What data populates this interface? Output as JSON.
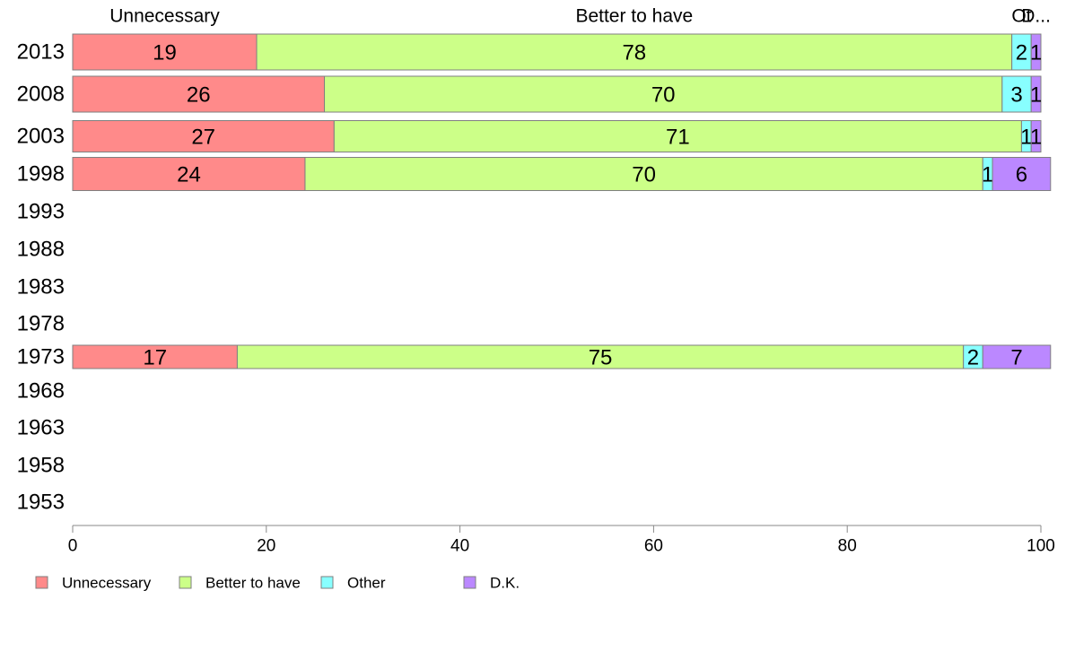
{
  "chart_data": {
    "type": "bar",
    "orientation": "horizontal",
    "stacked": true,
    "categories": [
      "2013",
      "2008",
      "2003",
      "1998",
      "1993",
      "1988",
      "1983",
      "1978",
      "1973",
      "1968",
      "1963",
      "1958",
      "1953"
    ],
    "series": [
      {
        "name": "Unnecessary",
        "color": "#ff8a8a",
        "values": [
          19,
          26,
          27,
          24,
          null,
          null,
          null,
          null,
          17,
          null,
          null,
          null,
          null
        ]
      },
      {
        "name": "Better to have",
        "color": "#ccff88",
        "values": [
          78,
          70,
          71,
          70,
          null,
          null,
          null,
          null,
          75,
          null,
          null,
          null,
          null
        ]
      },
      {
        "name": "Other",
        "color": "#88ffff",
        "values": [
          2,
          3,
          1,
          1,
          null,
          null,
          null,
          null,
          2,
          null,
          null,
          null,
          null
        ]
      },
      {
        "name": "D.K.",
        "color": "#bb88ff",
        "values": [
          1,
          1,
          1,
          6,
          null,
          null,
          null,
          null,
          7,
          null,
          null,
          null,
          null
        ]
      }
    ],
    "top_labels": [
      "Unnecessary",
      "Better to have",
      "Ot",
      "D..."
    ],
    "xlim": [
      0,
      100
    ],
    "xticks": [
      "0",
      "20",
      "40",
      "60",
      "80",
      "100"
    ],
    "legend_position": "bottom",
    "grid": false,
    "xlabel": "",
    "ylabel": ""
  }
}
